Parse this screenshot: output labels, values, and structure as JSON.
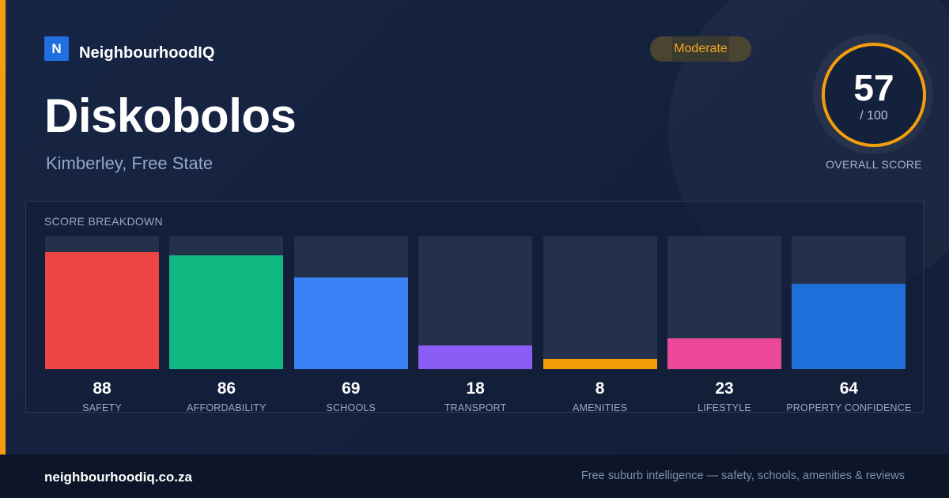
{
  "brand": {
    "logo_letter": "N",
    "name": "NeighbourhoodIQ"
  },
  "suburb": {
    "name": "Diskobolos",
    "location": "Kimberley, Free State"
  },
  "badge": {
    "label": "Moderate",
    "color": "#f5a623"
  },
  "overall": {
    "score": "57",
    "max_label": "/ 100",
    "label": "OVERALL SCORE",
    "ring_color": "#f59e0b"
  },
  "chart_data": {
    "type": "bar",
    "title": "SCORE BREAKDOWN",
    "categories": [
      "SAFETY",
      "AFFORDABILITY",
      "SCHOOLS",
      "TRANSPORT",
      "AMENITIES",
      "LIFESTYLE",
      "PROPERTY CONFIDENCE"
    ],
    "values": [
      88,
      86,
      69,
      18,
      8,
      23,
      64
    ],
    "colors": [
      "#ef4444",
      "#10b981",
      "#3b82f6",
      "#8b5cf6",
      "#f59e0b",
      "#ec4899",
      "#1e6fd9"
    ],
    "ylim": [
      0,
      100
    ],
    "grid": false,
    "legend": "none"
  },
  "footer": {
    "url": "neighbourhoodiq.co.za",
    "tagline": "Free suburb intelligence — safety, schools, amenities & reviews"
  }
}
